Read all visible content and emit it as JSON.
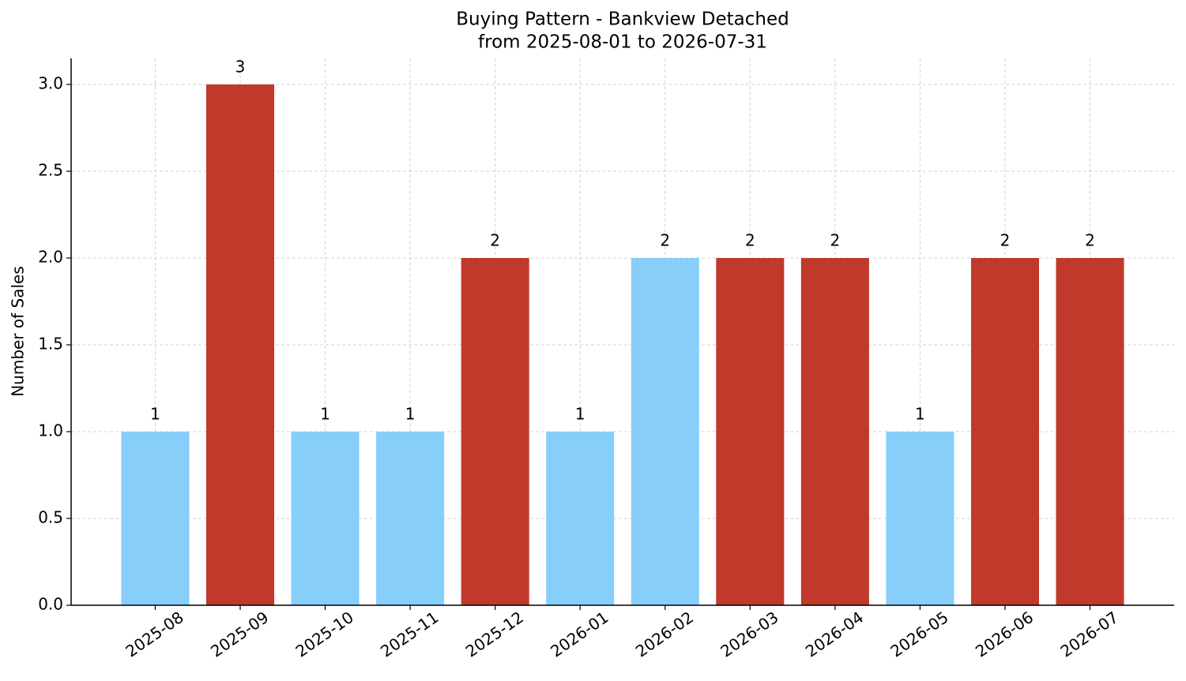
{
  "chart_data": {
    "type": "bar",
    "title": "Buying Pattern - Bankview Detached",
    "subtitle": "from 2025-08-01 to 2026-07-31",
    "y_label": "Number of Sales",
    "categories": [
      "2025-08",
      "2025-09",
      "2025-10",
      "2025-11",
      "2025-12",
      "2026-01",
      "2026-02",
      "2026-03",
      "2026-04",
      "2026-05",
      "2026-06",
      "2026-07"
    ],
    "values": [
      1,
      3,
      1,
      1,
      2,
      1,
      2,
      2,
      2,
      1,
      2,
      2
    ],
    "colors": [
      "#87cefa",
      "#c0392b",
      "#87cefa",
      "#87cefa",
      "#c0392b",
      "#87cefa",
      "#87cefa",
      "#c0392b",
      "#c0392b",
      "#87cefa",
      "#c0392b",
      "#c0392b"
    ],
    "ylim": [
      0,
      3.15
    ],
    "yticks": [
      {
        "value": 0,
        "label": "0.0"
      },
      0.5,
      {
        "value": 1,
        "label": "1.0"
      },
      1.5,
      {
        "value": 2,
        "label": "2.0"
      },
      2.5,
      {
        "value": 3,
        "label": "3.0"
      }
    ],
    "grid": true
  }
}
